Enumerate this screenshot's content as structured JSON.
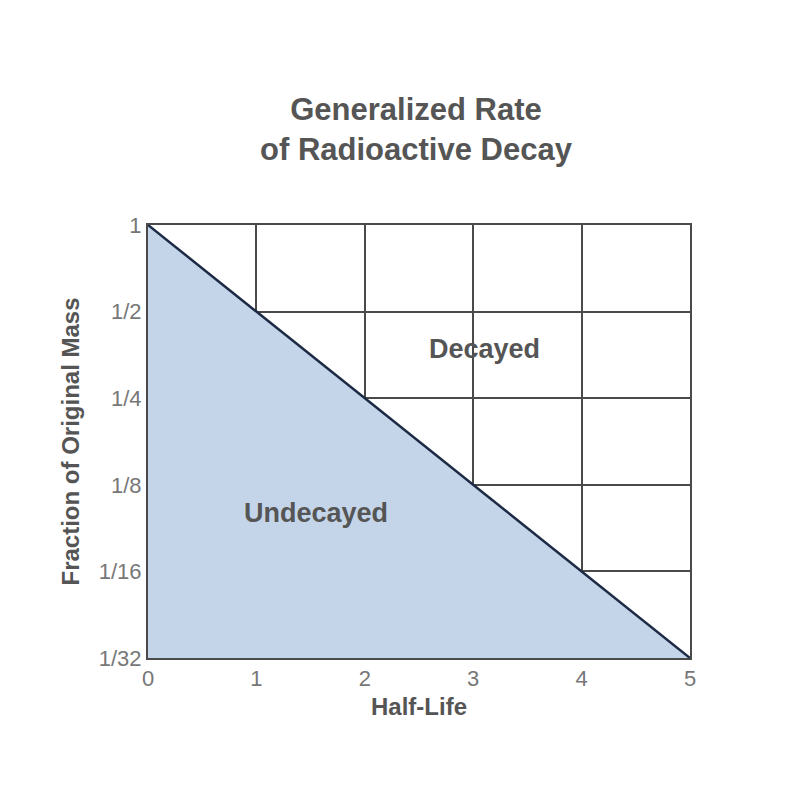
{
  "chart_data": {
    "type": "area",
    "title": "Generalized Rate\nof Radioactive Decay",
    "x_label": "Half-Life",
    "y_label": "Fraction of Original Mass",
    "x": [
      0,
      1,
      2,
      3,
      4,
      5
    ],
    "values": [
      1,
      0.5,
      0.25,
      0.125,
      0.0625,
      0.03125
    ],
    "color": "#c4d5ea",
    "xlim": [
      0,
      5
    ],
    "xticks": [
      0,
      1,
      2,
      3,
      4,
      5
    ],
    "ylim": [
      0.03125,
      1
    ],
    "yticks": [
      1,
      {
        "value": 0.5,
        "label": "1/2"
      },
      {
        "value": 0.25,
        "label": "1/4"
      },
      {
        "value": 0.125,
        "label": "1/8"
      },
      {
        "value": 0.0625,
        "label": "1/16"
      },
      {
        "value": 0.03125,
        "label": "1/32"
      }
    ],
    "log": "y",
    "grid": true,
    "annotations": [
      {
        "text": "Decayed",
        "x": 3.1,
        "y": 0.37
      },
      {
        "text": "Undecayed",
        "x": 1.55,
        "y": 0.1
      }
    ]
  }
}
